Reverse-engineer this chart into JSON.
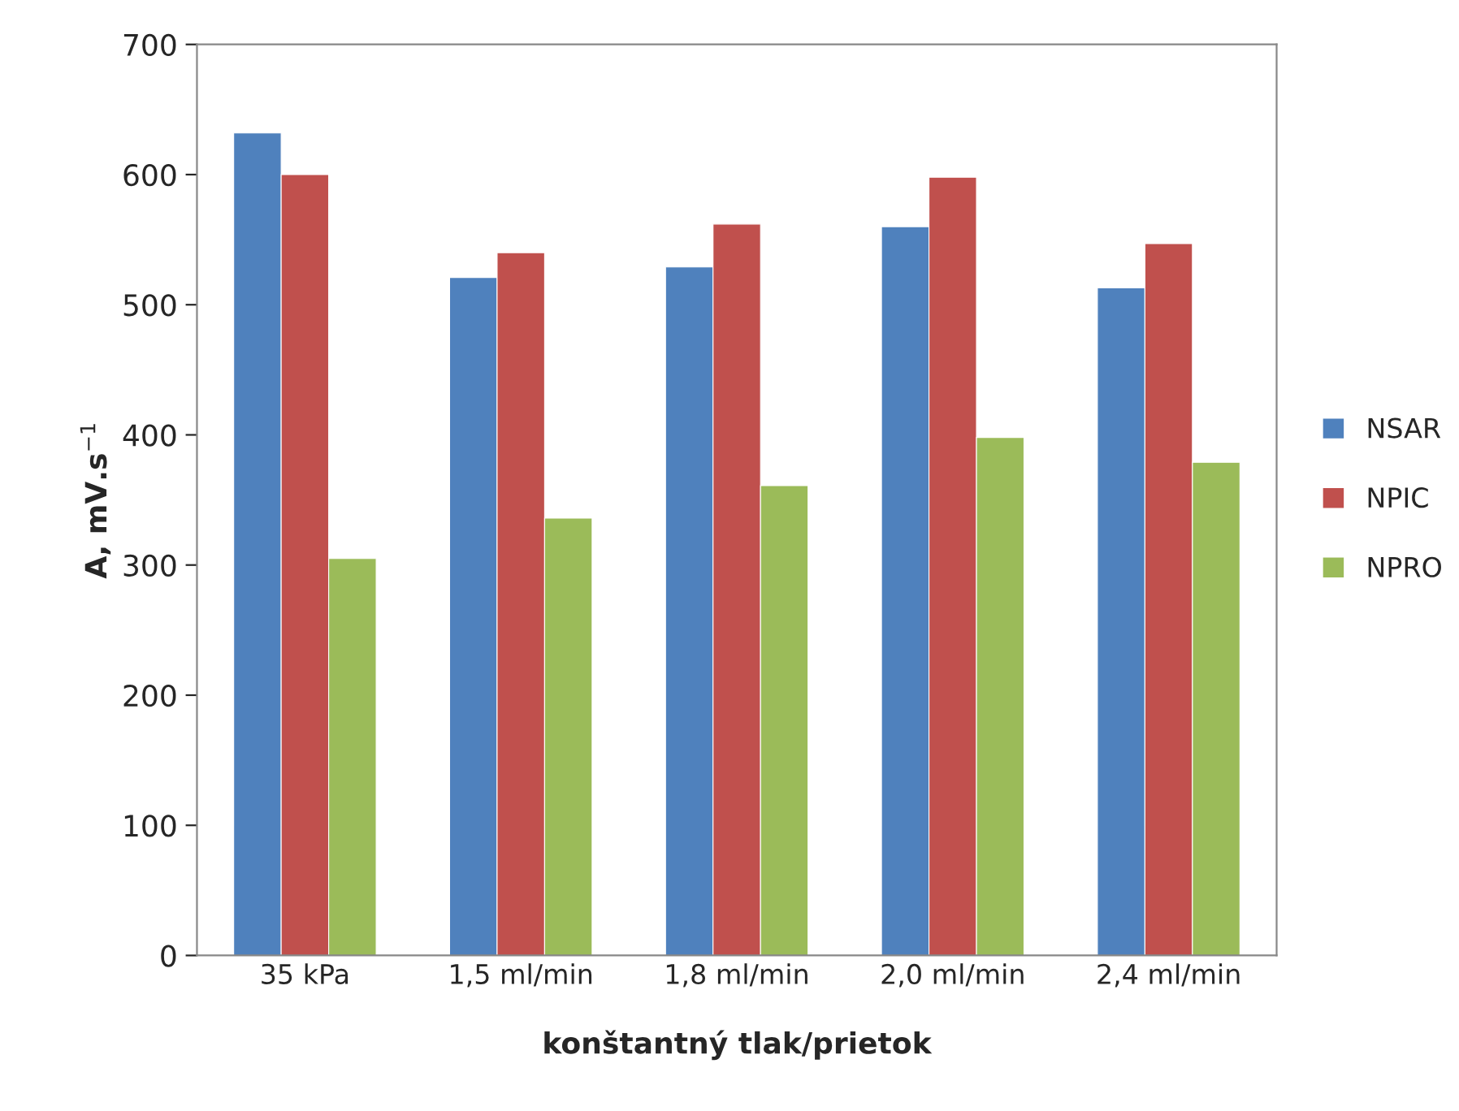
{
  "chart_data": {
    "type": "bar",
    "xlabel": "konštantný tlak/prietok",
    "ylabel": "A, mV.s$^{−1}$",
    "categories": [
      "35 kPa",
      "1,5 ml/min",
      "1,8 ml/min",
      "2,0 ml/min",
      "2,4 ml/min"
    ],
    "series": [
      {
        "name": "NSAR",
        "color": "#4f81bd",
        "values": [
          632,
          521,
          529,
          560,
          513
        ]
      },
      {
        "name": "NPIC",
        "color": "#c0504d",
        "values": [
          600,
          540,
          562,
          598,
          547
        ]
      },
      {
        "name": "NPRO",
        "color": "#9bbb59",
        "values": [
          305,
          336,
          361,
          398,
          379
        ]
      }
    ],
    "ylim": [
      0,
      700
    ],
    "yticks": [
      0,
      100,
      200,
      300,
      400,
      500,
      600,
      700
    ],
    "grid": false,
    "legend": "right"
  }
}
